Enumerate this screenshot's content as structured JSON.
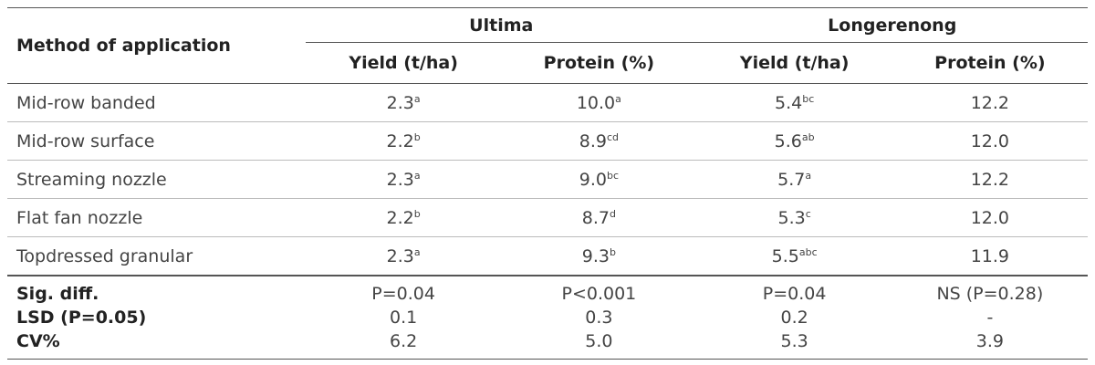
{
  "header": {
    "method": "Method of application",
    "groups": [
      "Ultima",
      "Longerenong"
    ],
    "columns": [
      "Yield (t/ha)",
      "Protein (%)",
      "Yield (t/ha)",
      "Protein (%)"
    ]
  },
  "rows": [
    {
      "label": "Mid-row banded",
      "cells": [
        {
          "text": "2.3",
          "sup": "a"
        },
        {
          "text": "10.0",
          "sup": "a"
        },
        {
          "text": "5.4",
          "sup": "bc"
        },
        {
          "text": "12.2"
        }
      ]
    },
    {
      "label": "Mid-row surface",
      "cells": [
        {
          "text": "2.2",
          "sup": "b"
        },
        {
          "text": "8.9",
          "sup": "cd"
        },
        {
          "text": "5.6",
          "sup": "ab"
        },
        {
          "text": "12.0"
        }
      ]
    },
    {
      "label": "Streaming nozzle",
      "cells": [
        {
          "text": "2.3",
          "sup": "a"
        },
        {
          "text": "9.0",
          "sup": "bc"
        },
        {
          "text": "5.7",
          "sup": "a"
        },
        {
          "text": "12.2"
        }
      ]
    },
    {
      "label": "Flat fan nozzle",
      "cells": [
        {
          "text": "2.2",
          "sup": "b"
        },
        {
          "text": "8.7",
          "sup": "d"
        },
        {
          "text": "5.3",
          "sup": "c"
        },
        {
          "text": "12.0"
        }
      ]
    },
    {
      "label": "Topdressed granular",
      "cells": [
        {
          "text": "2.3",
          "sup": "a"
        },
        {
          "text": "9.3",
          "sup": "b"
        },
        {
          "text": "5.5",
          "sup": "abc"
        },
        {
          "text": "11.9"
        }
      ]
    }
  ],
  "stats": [
    {
      "label": "Sig. diff.",
      "cells": [
        "P=0.04",
        "P<0.001",
        "P=0.04",
        "NS (P=0.28)"
      ]
    },
    {
      "label": "LSD (P=0.05)",
      "cells": [
        "0.1",
        "0.3",
        "0.2",
        "-"
      ]
    },
    {
      "label": "CV%",
      "cells": [
        "6.2",
        "5.0",
        "5.3",
        "3.9"
      ]
    }
  ]
}
